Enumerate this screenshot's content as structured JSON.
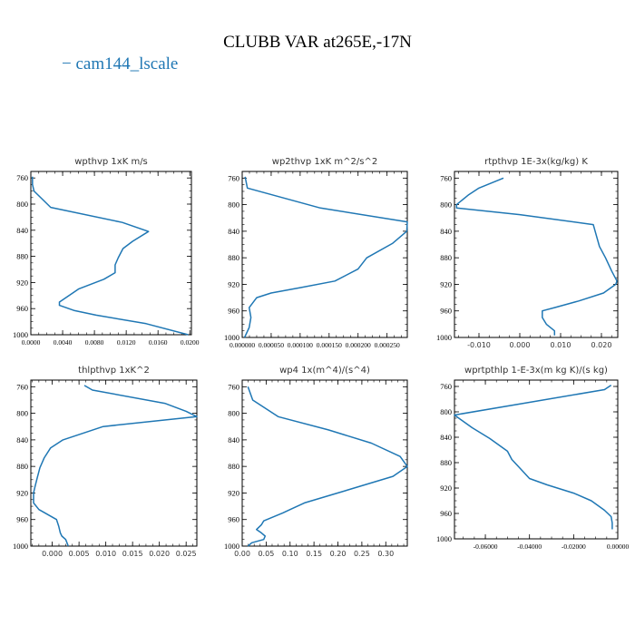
{
  "title": "CLUBB VAR at265E,-17N",
  "legend": {
    "label": "cam144_lscale",
    "color": "#1f77b4"
  },
  "chart_data": [
    {
      "type": "line",
      "title": "wpthvp  1xK m/s",
      "xlim": [
        0.0,
        0.0202
      ],
      "ylim": [
        1000,
        750
      ],
      "xticks": [
        0.0,
        0.004,
        0.008,
        0.012,
        0.016,
        0.02
      ],
      "xtick_labels": [
        "0.0000",
        "0.0040",
        "0.0080",
        "0.0120",
        "0.0160",
        "0.0200"
      ],
      "xtick_font": "serif",
      "yticks": [
        760,
        800,
        840,
        880,
        920,
        960,
        1000
      ],
      "series": [
        {
          "x": [
            0.0002,
            0.0002,
            0.0004,
            0.0025,
            0.0115,
            0.0148,
            0.0128,
            0.0116,
            0.011,
            0.0106,
            0.0106,
            0.0092,
            0.006,
            0.0036,
            0.0036,
            0.0055,
            0.0082,
            0.0145,
            0.0198
          ],
          "y": [
            758,
            770,
            780,
            805,
            828,
            842,
            857,
            868,
            882,
            893,
            905,
            915,
            930,
            950,
            955,
            963,
            970,
            983,
            1000
          ]
        }
      ]
    },
    {
      "type": "line",
      "title": "wp2thvp  1xK m^2/s^2",
      "xlim": [
        0.0,
        0.000285
      ],
      "ylim": [
        1000,
        750
      ],
      "xticks": [
        0.0,
        5e-05,
        0.0001,
        0.00015,
        0.0002,
        0.00025
      ],
      "xtick_labels": [
        "0.000000",
        "0.000050",
        "0.000100",
        "0.000150",
        "0.000200",
        "0.000250"
      ],
      "xtick_font": "serif",
      "yticks": [
        760,
        800,
        840,
        880,
        920,
        960,
        1000
      ],
      "series": [
        {
          "x": [
            5e-06,
            9e-06,
            0.000135,
            0.000285,
            0.000284,
            0.00026,
            0.000215,
            0.0002,
            0.00016,
            0.0001,
            5e-05,
            2.5e-05,
            1.2e-05,
            1.5e-05,
            1.2e-05,
            4e-06
          ],
          "y": [
            758,
            775,
            805,
            826,
            840,
            858,
            880,
            897,
            915,
            925,
            933,
            940,
            955,
            970,
            985,
            1000
          ]
        }
      ]
    },
    {
      "type": "line",
      "title": "rtpthvp  1E-3x(kg/kg) K",
      "xlim": [
        -0.016,
        0.024
      ],
      "ylim": [
        1000,
        750
      ],
      "xticks": [
        -0.01,
        0.0,
        0.01,
        0.02
      ],
      "xtick_labels": [
        "-0.010",
        "0.000",
        "0.010",
        "0.020"
      ],
      "xtick_font": "sans",
      "yticks": [
        760,
        800,
        840,
        880,
        920,
        960,
        1000
      ],
      "series": [
        {
          "x": [
            -0.004,
            -0.01,
            -0.0125,
            -0.0155,
            -0.0155,
            0.0,
            0.018,
            0.0195,
            0.021,
            0.0225,
            0.0238,
            0.0235,
            0.0205,
            0.0145,
            0.0085,
            0.0055,
            0.0055,
            0.0065,
            0.0085,
            0.0085
          ],
          "y": [
            760,
            775,
            785,
            800,
            805,
            815,
            830,
            863,
            880,
            900,
            915,
            920,
            933,
            945,
            955,
            960,
            970,
            980,
            990,
            997
          ]
        }
      ]
    },
    {
      "type": "line",
      "title": "thlpthvp  1xK^2",
      "xlim": [
        -0.004,
        0.027
      ],
      "ylim": [
        1000,
        750
      ],
      "xticks": [
        0.0,
        0.005,
        0.01,
        0.015,
        0.02,
        0.025
      ],
      "xtick_labels": [
        "0.000",
        "0.005",
        "0.010",
        "0.015",
        "0.020",
        "0.025"
      ],
      "xtick_font": "sans",
      "yticks": [
        760,
        800,
        840,
        880,
        920,
        960,
        1000
      ],
      "series": [
        {
          "x": [
            0.006,
            0.0075,
            0.021,
            0.025,
            0.027,
            0.0095,
            0.002,
            -0.0003,
            -0.0015,
            -0.0023,
            -0.0028,
            -0.0032,
            -0.0035,
            -0.0035,
            -0.0035,
            -0.0025,
            0.0008,
            0.0012,
            0.0015,
            0.0018,
            0.0025,
            0.003
          ],
          "y": [
            758,
            765,
            785,
            797,
            805,
            820,
            840,
            852,
            867,
            882,
            897,
            910,
            920,
            928,
            935,
            945,
            960,
            970,
            980,
            985,
            990,
            1000
          ]
        }
      ]
    },
    {
      "type": "line",
      "title": "wp4   1x(m^4)/(s^4)",
      "xlim": [
        0.0,
        0.345
      ],
      "ylim": [
        1000,
        750
      ],
      "xticks": [
        0.0,
        0.05,
        0.1,
        0.15,
        0.2,
        0.25,
        0.3
      ],
      "xtick_labels": [
        "0.00",
        "0.05",
        "0.10",
        "0.15",
        "0.20",
        "0.25",
        "0.30"
      ],
      "xtick_font": "sans",
      "yticks": [
        760,
        800,
        840,
        880,
        920,
        960,
        1000
      ],
      "series": [
        {
          "x": [
            0.012,
            0.022,
            0.075,
            0.18,
            0.27,
            0.33,
            0.345,
            0.315,
            0.2,
            0.13,
            0.1,
            0.085,
            0.045,
            0.04,
            0.03,
            0.04,
            0.048,
            0.045,
            0.02,
            0.012
          ],
          "y": [
            760,
            780,
            805,
            825,
            845,
            865,
            880,
            895,
            920,
            935,
            945,
            950,
            962,
            968,
            975,
            980,
            985,
            990,
            995,
            1000
          ]
        }
      ]
    },
    {
      "type": "line",
      "title": "wprtpthlp  1-E-3x(m kg K)/(s kg)",
      "xlim": [
        -0.074,
        0.0
      ],
      "ylim": [
        1000,
        750
      ],
      "xticks": [
        -0.06,
        -0.04,
        -0.02,
        0.0
      ],
      "xtick_labels": [
        "-0.06000",
        "-0.04000",
        "-0.02000",
        "0.00000"
      ],
      "xtick_font": "serif",
      "yticks": [
        760,
        800,
        840,
        880,
        920,
        960,
        1000
      ],
      "series": [
        {
          "x": [
            -0.003,
            -0.006,
            -0.04,
            -0.074,
            -0.07,
            -0.066,
            -0.058,
            -0.05,
            -0.048,
            -0.044,
            -0.04,
            -0.032,
            -0.02,
            -0.012,
            -0.006,
            -0.003,
            -0.0025,
            -0.0025
          ],
          "y": [
            758,
            765,
            785,
            805,
            815,
            825,
            842,
            862,
            875,
            890,
            905,
            915,
            928,
            940,
            955,
            965,
            975,
            985
          ]
        }
      ]
    }
  ]
}
